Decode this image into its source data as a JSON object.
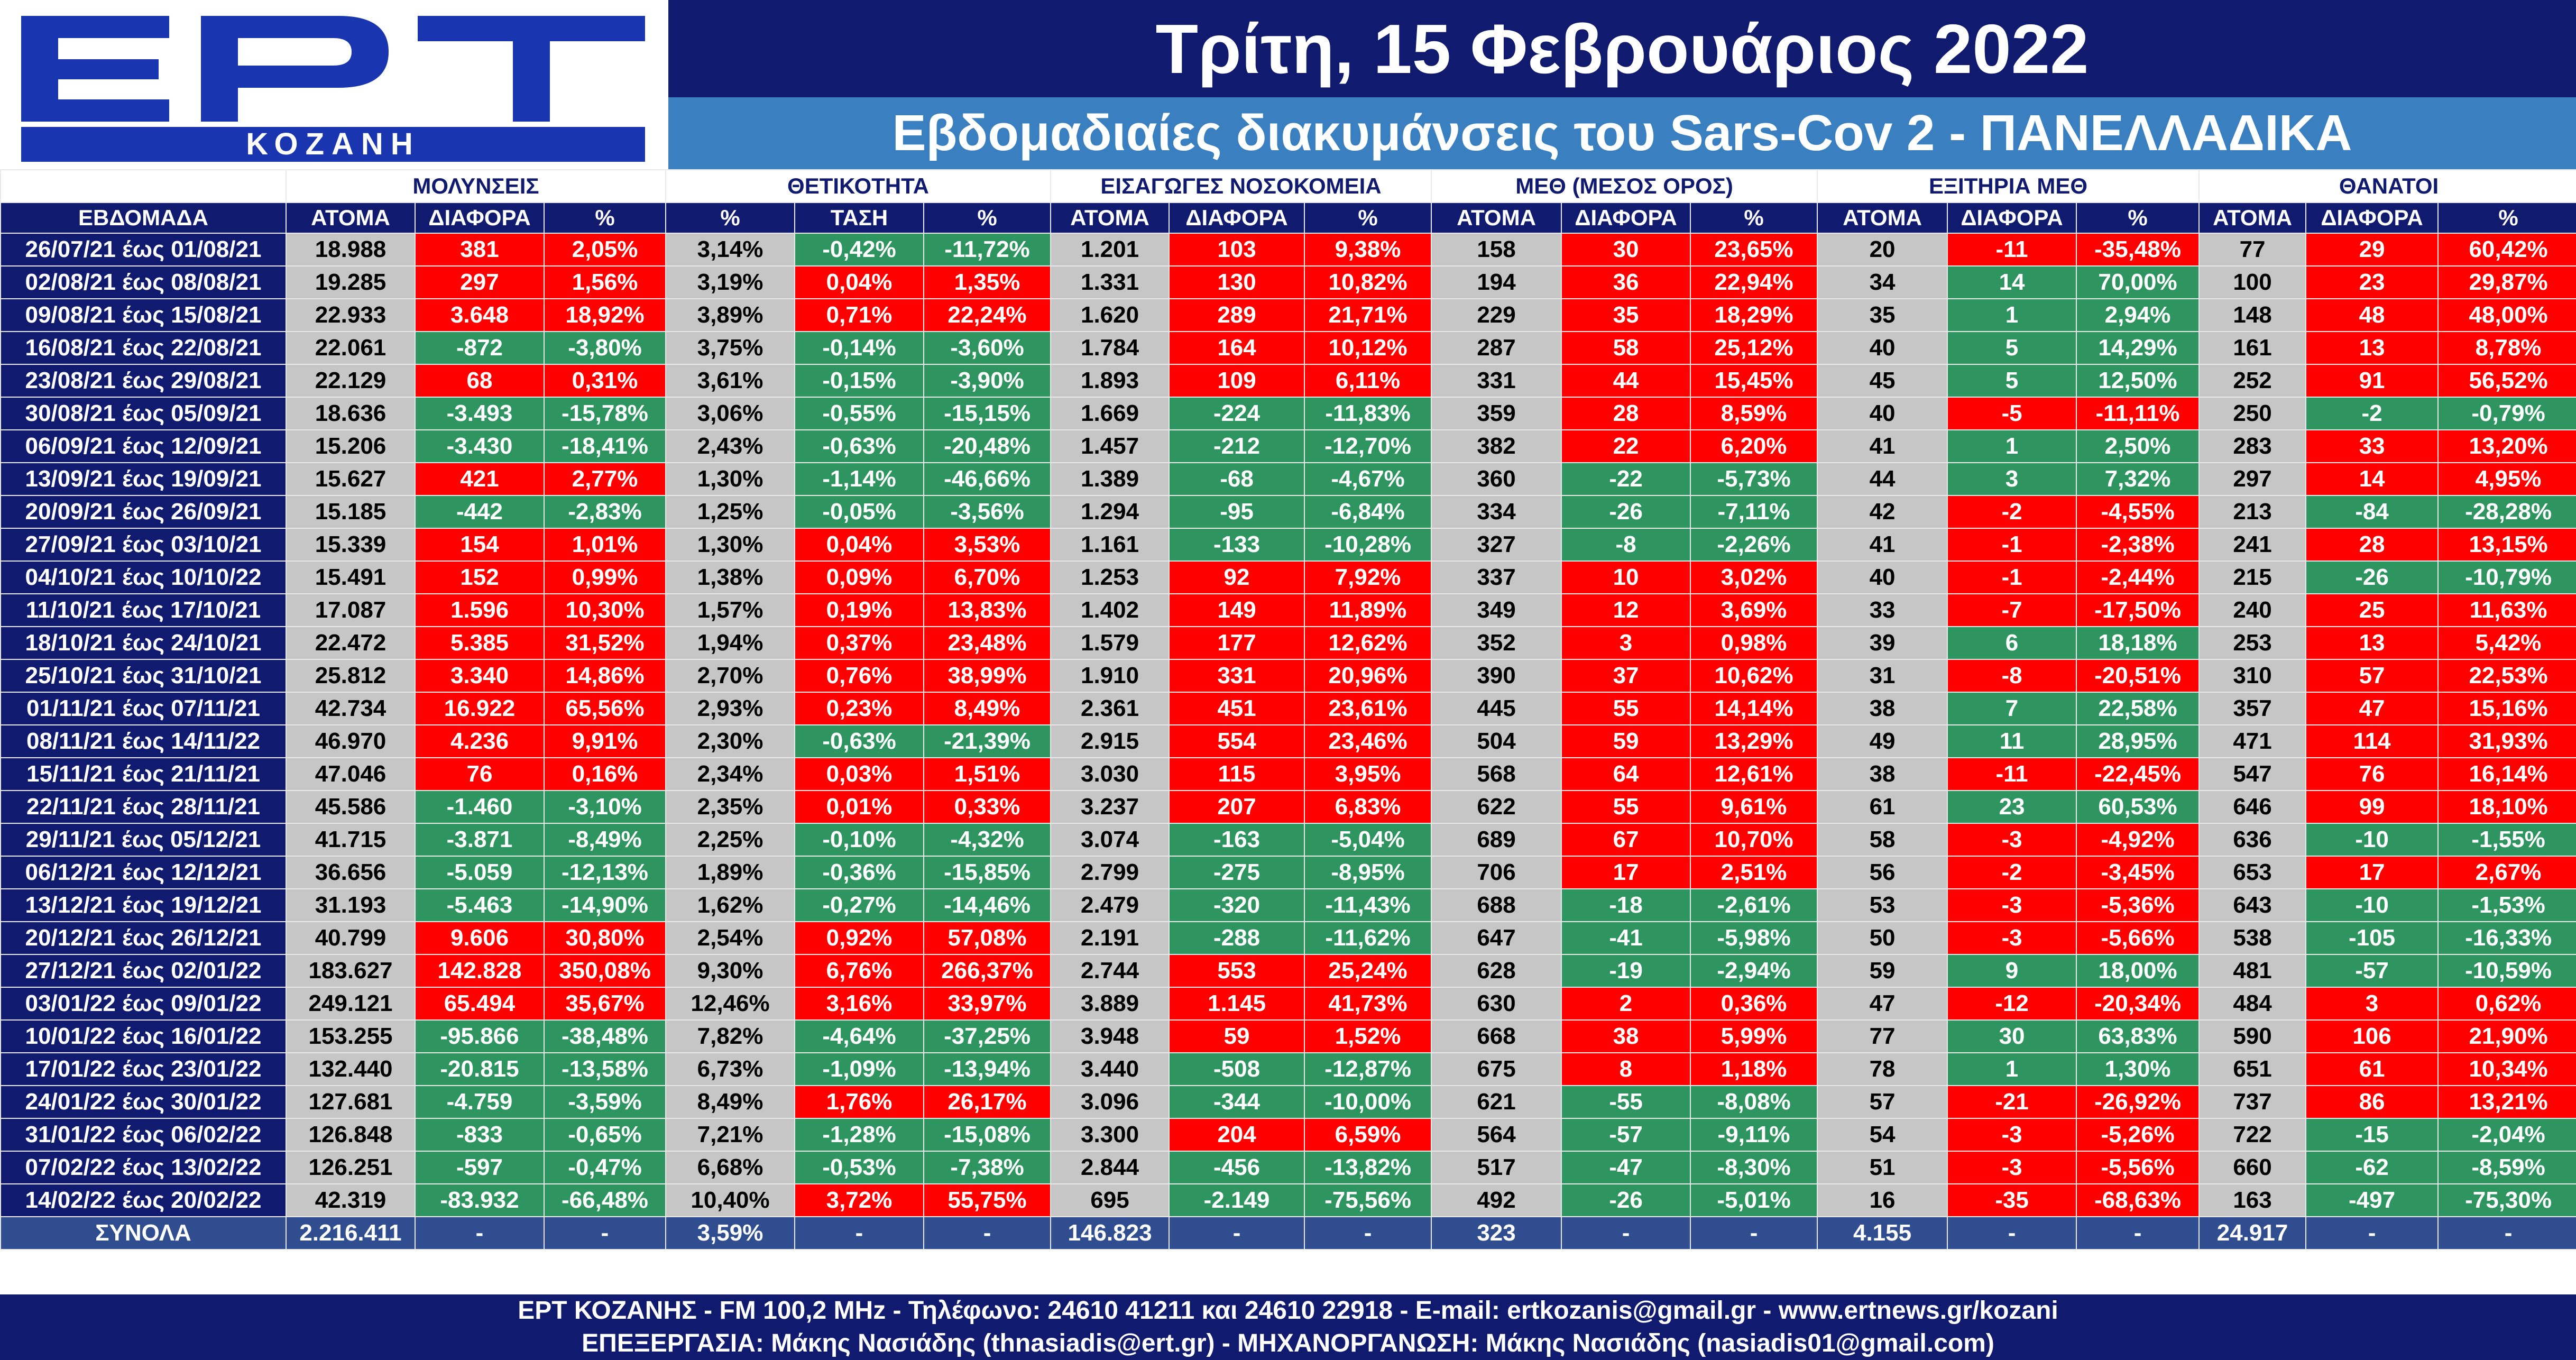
{
  "logo": {
    "brand": "ΕΡΤ",
    "city": "ΚΟΖΑΝΗ"
  },
  "header": {
    "title": "Τρίτη, 15 Φεβρουάριος 2022",
    "subtitle": "Εβδομαδιαίες διακυμάνσεις του Sars-Cov 2 - ΠΑΝΕΛΛΑΔΙΚΑ"
  },
  "groups": [
    "ΜΟΛΥΝΣΕΙΣ",
    "ΘΕΤΙΚΟΤΗΤΑ",
    "ΕΙΣΑΓΩΓΕΣ ΝΟΣΟΚΟΜΕΙΑ",
    "ΜΕΘ (ΜΕΣΟΣ ΟΡΟΣ)",
    "ΕΞΙΤΗΡΙΑ ΜΕΘ",
    "ΘΑΝΑΤΟΙ"
  ],
  "columns": [
    "ΕΒΔΟΜΑΔΑ",
    "ΑΤΟΜΑ",
    "ΔΙΑΦΟΡΑ",
    "%",
    "%",
    "ΤΑΣΗ",
    "%",
    "ΑΤΟΜΑ",
    "ΔΙΑΦΟΡΑ",
    "%",
    "ΑΤΟΜΑ",
    "ΔΙΑΦΟΡΑ",
    "%",
    "ΑΤΟΜΑ",
    "ΔΙΑΦΟΡΑ",
    "%",
    "ΑΤΟΜΑ",
    "ΔΙΑΦΟΡΑ",
    "%"
  ],
  "colors": {
    "navy": "#101a6e",
    "red": "#ff0000",
    "green": "#2e9460",
    "gray": "#c6c6c6",
    "total": "#2f4d8f"
  },
  "rows": [
    [
      "26/07/21 έως 01/08/21",
      "18.988",
      "381",
      "2,05%",
      "3,14%",
      "-0,42%",
      "-11,72%",
      "1.201",
      "103",
      "9,38%",
      "158",
      "30",
      "23,65%",
      "20",
      "-11",
      "-35,48%",
      "77",
      "29",
      "60,42%"
    ],
    [
      "02/08/21 έως 08/08/21",
      "19.285",
      "297",
      "1,56%",
      "3,19%",
      "0,04%",
      "1,35%",
      "1.331",
      "130",
      "10,82%",
      "194",
      "36",
      "22,94%",
      "34",
      "14",
      "70,00%",
      "100",
      "23",
      "29,87%"
    ],
    [
      "09/08/21 έως 15/08/21",
      "22.933",
      "3.648",
      "18,92%",
      "3,89%",
      "0,71%",
      "22,24%",
      "1.620",
      "289",
      "21,71%",
      "229",
      "35",
      "18,29%",
      "35",
      "1",
      "2,94%",
      "148",
      "48",
      "48,00%"
    ],
    [
      "16/08/21 έως 22/08/21",
      "22.061",
      "-872",
      "-3,80%",
      "3,75%",
      "-0,14%",
      "-3,60%",
      "1.784",
      "164",
      "10,12%",
      "287",
      "58",
      "25,12%",
      "40",
      "5",
      "14,29%",
      "161",
      "13",
      "8,78%"
    ],
    [
      "23/08/21 έως 29/08/21",
      "22.129",
      "68",
      "0,31%",
      "3,61%",
      "-0,15%",
      "-3,90%",
      "1.893",
      "109",
      "6,11%",
      "331",
      "44",
      "15,45%",
      "45",
      "5",
      "12,50%",
      "252",
      "91",
      "56,52%"
    ],
    [
      "30/08/21 έως 05/09/21",
      "18.636",
      "-3.493",
      "-15,78%",
      "3,06%",
      "-0,55%",
      "-15,15%",
      "1.669",
      "-224",
      "-11,83%",
      "359",
      "28",
      "8,59%",
      "40",
      "-5",
      "-11,11%",
      "250",
      "-2",
      "-0,79%"
    ],
    [
      "06/09/21 έως 12/09/21",
      "15.206",
      "-3.430",
      "-18,41%",
      "2,43%",
      "-0,63%",
      "-20,48%",
      "1.457",
      "-212",
      "-12,70%",
      "382",
      "22",
      "6,20%",
      "41",
      "1",
      "2,50%",
      "283",
      "33",
      "13,20%"
    ],
    [
      "13/09/21 έως 19/09/21",
      "15.627",
      "421",
      "2,77%",
      "1,30%",
      "-1,14%",
      "-46,66%",
      "1.389",
      "-68",
      "-4,67%",
      "360",
      "-22",
      "-5,73%",
      "44",
      "3",
      "7,32%",
      "297",
      "14",
      "4,95%"
    ],
    [
      "20/09/21 έως 26/09/21",
      "15.185",
      "-442",
      "-2,83%",
      "1,25%",
      "-0,05%",
      "-3,56%",
      "1.294",
      "-95",
      "-6,84%",
      "334",
      "-26",
      "-7,11%",
      "42",
      "-2",
      "-4,55%",
      "213",
      "-84",
      "-28,28%"
    ],
    [
      "27/09/21 έως 03/10/21",
      "15.339",
      "154",
      "1,01%",
      "1,30%",
      "0,04%",
      "3,53%",
      "1.161",
      "-133",
      "-10,28%",
      "327",
      "-8",
      "-2,26%",
      "41",
      "-1",
      "-2,38%",
      "241",
      "28",
      "13,15%"
    ],
    [
      "04/10/21 έως 10/10/22",
      "15.491",
      "152",
      "0,99%",
      "1,38%",
      "0,09%",
      "6,70%",
      "1.253",
      "92",
      "7,92%",
      "337",
      "10",
      "3,02%",
      "40",
      "-1",
      "-2,44%",
      "215",
      "-26",
      "-10,79%"
    ],
    [
      "11/10/21 έως 17/10/21",
      "17.087",
      "1.596",
      "10,30%",
      "1,57%",
      "0,19%",
      "13,83%",
      "1.402",
      "149",
      "11,89%",
      "349",
      "12",
      "3,69%",
      "33",
      "-7",
      "-17,50%",
      "240",
      "25",
      "11,63%"
    ],
    [
      "18/10/21 έως 24/10/21",
      "22.472",
      "5.385",
      "31,52%",
      "1,94%",
      "0,37%",
      "23,48%",
      "1.579",
      "177",
      "12,62%",
      "352",
      "3",
      "0,98%",
      "39",
      "6",
      "18,18%",
      "253",
      "13",
      "5,42%"
    ],
    [
      "25/10/21 έως 31/10/21",
      "25.812",
      "3.340",
      "14,86%",
      "2,70%",
      "0,76%",
      "38,99%",
      "1.910",
      "331",
      "20,96%",
      "390",
      "37",
      "10,62%",
      "31",
      "-8",
      "-20,51%",
      "310",
      "57",
      "22,53%"
    ],
    [
      "01/11/21 έως 07/11/21",
      "42.734",
      "16.922",
      "65,56%",
      "2,93%",
      "0,23%",
      "8,49%",
      "2.361",
      "451",
      "23,61%",
      "445",
      "55",
      "14,14%",
      "38",
      "7",
      "22,58%",
      "357",
      "47",
      "15,16%"
    ],
    [
      "08/11/21 έως 14/11/22",
      "46.970",
      "4.236",
      "9,91%",
      "2,30%",
      "-0,63%",
      "-21,39%",
      "2.915",
      "554",
      "23,46%",
      "504",
      "59",
      "13,29%",
      "49",
      "11",
      "28,95%",
      "471",
      "114",
      "31,93%"
    ],
    [
      "15/11/21 έως 21/11/21",
      "47.046",
      "76",
      "0,16%",
      "2,34%",
      "0,03%",
      "1,51%",
      "3.030",
      "115",
      "3,95%",
      "568",
      "64",
      "12,61%",
      "38",
      "-11",
      "-22,45%",
      "547",
      "76",
      "16,14%"
    ],
    [
      "22/11/21 έως 28/11/21",
      "45.586",
      "-1.460",
      "-3,10%",
      "2,35%",
      "0,01%",
      "0,33%",
      "3.237",
      "207",
      "6,83%",
      "622",
      "55",
      "9,61%",
      "61",
      "23",
      "60,53%",
      "646",
      "99",
      "18,10%"
    ],
    [
      "29/11/21 έως 05/12/21",
      "41.715",
      "-3.871",
      "-8,49%",
      "2,25%",
      "-0,10%",
      "-4,32%",
      "3.074",
      "-163",
      "-5,04%",
      "689",
      "67",
      "10,70%",
      "58",
      "-3",
      "-4,92%",
      "636",
      "-10",
      "-1,55%"
    ],
    [
      "06/12/21 έως 12/12/21",
      "36.656",
      "-5.059",
      "-12,13%",
      "1,89%",
      "-0,36%",
      "-15,85%",
      "2.799",
      "-275",
      "-8,95%",
      "706",
      "17",
      "2,51%",
      "56",
      "-2",
      "-3,45%",
      "653",
      "17",
      "2,67%"
    ],
    [
      "13/12/21 έως 19/12/21",
      "31.193",
      "-5.463",
      "-14,90%",
      "1,62%",
      "-0,27%",
      "-14,46%",
      "2.479",
      "-320",
      "-11,43%",
      "688",
      "-18",
      "-2,61%",
      "53",
      "-3",
      "-5,36%",
      "643",
      "-10",
      "-1,53%"
    ],
    [
      "20/12/21 έως 26/12/21",
      "40.799",
      "9.606",
      "30,80%",
      "2,54%",
      "0,92%",
      "57,08%",
      "2.191",
      "-288",
      "-11,62%",
      "647",
      "-41",
      "-5,98%",
      "50",
      "-3",
      "-5,66%",
      "538",
      "-105",
      "-16,33%"
    ],
    [
      "27/12/21 έως 02/01/22",
      "183.627",
      "142.828",
      "350,08%",
      "9,30%",
      "6,76%",
      "266,37%",
      "2.744",
      "553",
      "25,24%",
      "628",
      "-19",
      "-2,94%",
      "59",
      "9",
      "18,00%",
      "481",
      "-57",
      "-10,59%"
    ],
    [
      "03/01/22 έως 09/01/22",
      "249.121",
      "65.494",
      "35,67%",
      "12,46%",
      "3,16%",
      "33,97%",
      "3.889",
      "1.145",
      "41,73%",
      "630",
      "2",
      "0,36%",
      "47",
      "-12",
      "-20,34%",
      "484",
      "3",
      "0,62%"
    ],
    [
      "10/01/22 έως 16/01/22",
      "153.255",
      "-95.866",
      "-38,48%",
      "7,82%",
      "-4,64%",
      "-37,25%",
      "3.948",
      "59",
      "1,52%",
      "668",
      "38",
      "5,99%",
      "77",
      "30",
      "63,83%",
      "590",
      "106",
      "21,90%"
    ],
    [
      "17/01/22 έως 23/01/22",
      "132.440",
      "-20.815",
      "-13,58%",
      "6,73%",
      "-1,09%",
      "-13,94%",
      "3.440",
      "-508",
      "-12,87%",
      "675",
      "8",
      "1,18%",
      "78",
      "1",
      "1,30%",
      "651",
      "61",
      "10,34%"
    ],
    [
      "24/01/22 έως 30/01/22",
      "127.681",
      "-4.759",
      "-3,59%",
      "8,49%",
      "1,76%",
      "26,17%",
      "3.096",
      "-344",
      "-10,00%",
      "621",
      "-55",
      "-8,08%",
      "57",
      "-21",
      "-26,92%",
      "737",
      "86",
      "13,21%"
    ],
    [
      "31/01/22 έως 06/02/22",
      "126.848",
      "-833",
      "-0,65%",
      "7,21%",
      "-1,28%",
      "-15,08%",
      "3.300",
      "204",
      "6,59%",
      "564",
      "-57",
      "-9,11%",
      "54",
      "-3",
      "-5,26%",
      "722",
      "-15",
      "-2,04%"
    ],
    [
      "07/02/22 έως 13/02/22",
      "126.251",
      "-597",
      "-0,47%",
      "6,68%",
      "-0,53%",
      "-7,38%",
      "2.844",
      "-456",
      "-13,82%",
      "517",
      "-47",
      "-8,30%",
      "51",
      "-3",
      "-5,56%",
      "660",
      "-62",
      "-8,59%"
    ],
    [
      "14/02/22 έως 20/02/22",
      "42.319",
      "-83.932",
      "-66,48%",
      "10,40%",
      "3,72%",
      "55,75%",
      "695",
      "-2.149",
      "-75,56%",
      "492",
      "-26",
      "-5,01%",
      "16",
      "-35",
      "-68,63%",
      "163",
      "-497",
      "-75,30%"
    ]
  ],
  "totals": [
    "ΣΥΝΟΛΑ",
    "2.216.411",
    "-",
    "-",
    "3,59%",
    "-",
    "-",
    "146.823",
    "-",
    "-",
    "323",
    "-",
    "-",
    "4.155",
    "-",
    "-",
    "24.917",
    "-",
    "-"
  ],
  "footer": {
    "line1": "ΕΡΤ ΚΟΖΑΝΗΣ - FM 100,2 MHz - Τηλέφωνο:  24610 41211 και 24610 22918 - E-mail: ertkozanis@gmail.gr - www.ertnews.gr/kozani",
    "line2": "ΕΠΕΞΕΡΓΑΣΙΑ: Μάκης Νασιάδης (thnasiadis@ert.gr) - ΜΗΧΑΝΟΡΓΑΝΩΣΗ: Μάκης Νασιάδης (nasiadis01@gmail.com)"
  }
}
